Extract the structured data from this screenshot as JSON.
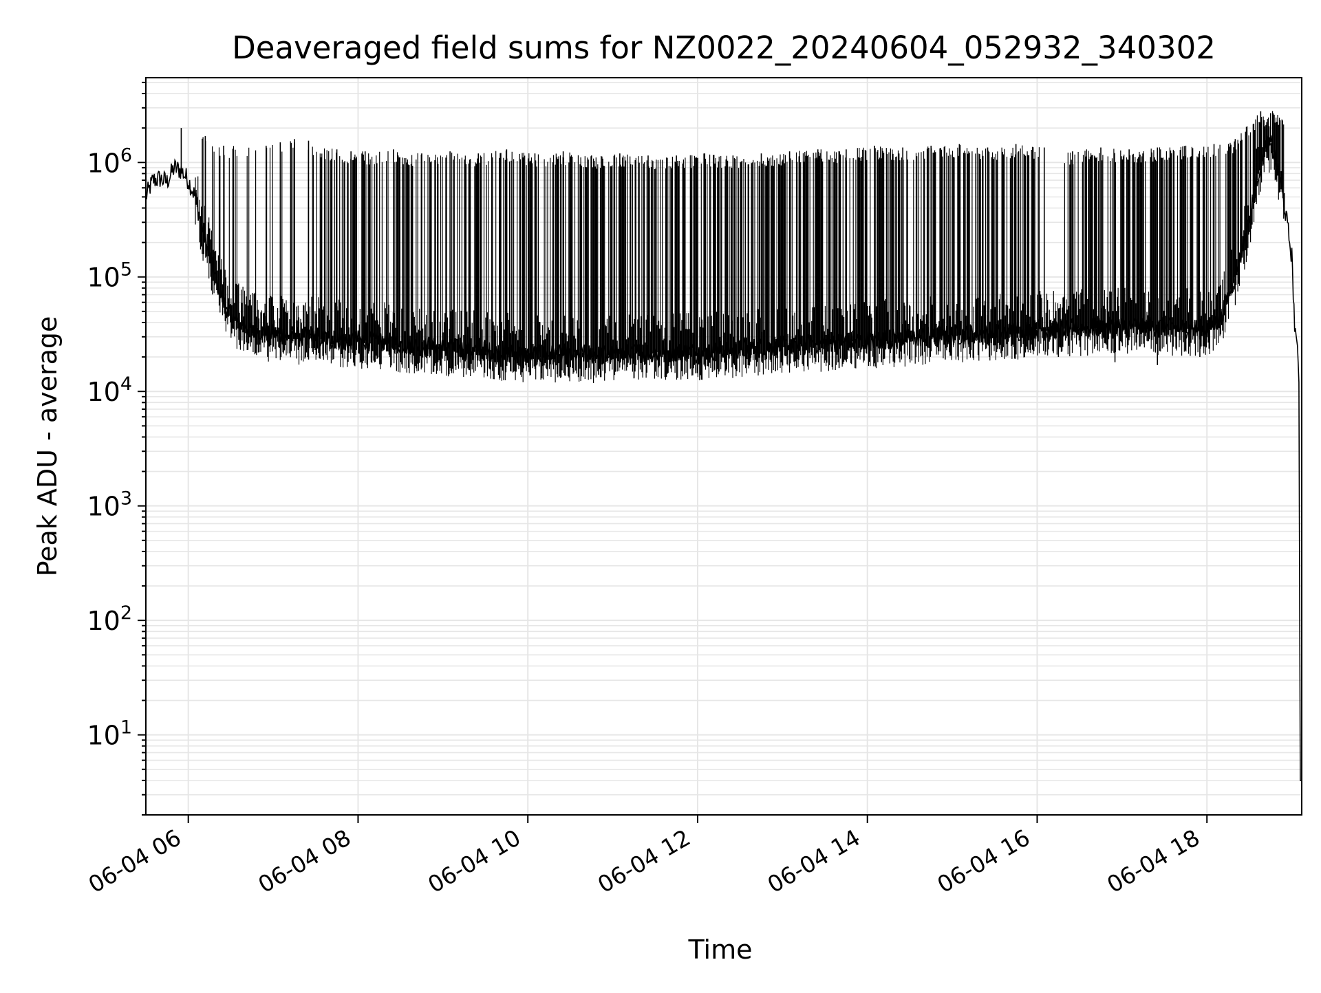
{
  "chart_data": {
    "type": "line",
    "title": "Deaveraged field sums for NZ0022_20240604_052932_340302",
    "xlabel": "Time",
    "ylabel": "Peak ADU - average",
    "yscale": "log",
    "ylim": [
      2,
      5500000
    ],
    "xlim": [
      "2024-06-04 05:30",
      "2024-06-04 19:07"
    ],
    "grid": true,
    "line_color": "#000000",
    "grid_color": "#e6e6e6",
    "x_tick_labels": [
      "06-04 06",
      "06-04 08",
      "06-04 10",
      "06-04 12",
      "06-04 14",
      "06-04 16",
      "06-04 18"
    ],
    "x_tick_values": [
      "2024-06-04 06:00",
      "2024-06-04 08:00",
      "2024-06-04 10:00",
      "2024-06-04 12:00",
      "2024-06-04 14:00",
      "2024-06-04 16:00",
      "2024-06-04 18:00"
    ],
    "y_ticks": [
      {
        "value": 10,
        "base": "10",
        "exp": "1"
      },
      {
        "value": 100,
        "base": "10",
        "exp": "2"
      },
      {
        "value": 1000,
        "base": "10",
        "exp": "3"
      },
      {
        "value": 10000,
        "base": "10",
        "exp": "4"
      },
      {
        "value": 100000,
        "base": "10",
        "exp": "5"
      },
      {
        "value": 1000000,
        "base": "10",
        "exp": "6"
      }
    ],
    "series": [
      {
        "x": [
          "05:30",
          "05:35",
          "05:40",
          "05:45",
          "05:50",
          "05:55",
          "06:00",
          "06:05",
          "06:10",
          "06:15",
          "06:20",
          "06:25",
          "06:30",
          "06:35",
          "06:40",
          "06:45",
          "06:50",
          "06:55",
          "07:00",
          "07:10",
          "07:20",
          "07:30",
          "07:40",
          "07:50",
          "08:00",
          "08:20",
          "08:40",
          "09:00",
          "09:20",
          "09:40",
          "10:00",
          "10:20",
          "10:40",
          "11:00",
          "11:20",
          "11:40",
          "12:00",
          "12:20",
          "12:40",
          "13:00",
          "13:20",
          "13:40",
          "14:00",
          "14:20",
          "14:40",
          "15:00",
          "15:20",
          "15:40",
          "16:00",
          "16:20",
          "16:40",
          "17:00",
          "17:20",
          "17:40",
          "18:00",
          "18:10",
          "18:20",
          "18:30",
          "18:35",
          "18:40",
          "18:45",
          "18:50",
          "18:55",
          "19:00",
          "19:02",
          "19:04",
          "19:05",
          "19:06",
          "19:07"
        ],
        "y": [
          500000,
          700000,
          720000,
          680000,
          900000,
          850000,
          700000,
          500000,
          250000,
          150000,
          90000,
          60000,
          45000,
          40000,
          38000,
          35000,
          34000,
          32000,
          32000,
          31000,
          30000,
          30000,
          29000,
          28000,
          28000,
          27000,
          25000,
          24000,
          23000,
          22000,
          21000,
          21000,
          21000,
          21000,
          22000,
          22000,
          22000,
          23000,
          24000,
          25000,
          26000,
          27000,
          28000,
          29000,
          30000,
          31000,
          32000,
          33000,
          35000,
          36000,
          36000,
          37000,
          37000,
          36000,
          35000,
          45000,
          100000,
          300000,
          700000,
          1200000,
          1500000,
          900000,
          400000,
          150000,
          38000,
          25000,
          12000,
          4,
          4
        ],
        "peak_x": [
          "05:55",
          "06:12",
          "06:25",
          "06:55",
          "07:05",
          "07:15",
          "07:25",
          "07:45",
          "07:55",
          "08:05",
          "08:25",
          "08:45",
          "09:05",
          "09:25",
          "09:45",
          "10:05",
          "10:25",
          "10:45",
          "11:05",
          "11:25",
          "11:45",
          "12:05",
          "12:25",
          "12:45",
          "13:05",
          "13:25",
          "13:45",
          "14:05",
          "14:25",
          "14:45",
          "15:05",
          "15:25",
          "15:45",
          "16:05",
          "16:25",
          "16:45",
          "17:05",
          "17:25",
          "17:45",
          "18:05",
          "18:20",
          "18:38",
          "18:45"
        ],
        "peak_y": [
          2000000,
          1700000,
          1400000,
          1400000,
          1500000,
          1600000,
          1550000,
          1300000,
          1250000,
          1250000,
          1300000,
          1200000,
          1250000,
          1200000,
          1300000,
          1200000,
          1250000,
          1150000,
          1200000,
          1150000,
          1150000,
          1200000,
          1150000,
          1200000,
          1250000,
          1300000,
          1300000,
          1400000,
          1350000,
          1400000,
          1450000,
          1350000,
          1450000,
          1350000,
          1250000,
          1350000,
          1300000,
          1350000,
          1400000,
          1450000,
          1600000,
          2800000,
          2700000
        ],
        "dip_x": [
          "06:50",
          "07:25",
          "08:15",
          "09:05",
          "09:55",
          "10:10",
          "10:50",
          "11:15",
          "11:55",
          "12:15",
          "12:55",
          "13:40",
          "14:10",
          "14:55",
          "15:35",
          "16:15",
          "16:55",
          "17:25",
          "17:55"
        ],
        "dip_y": [
          22000,
          19000,
          20000,
          16000,
          14000,
          13000,
          14000,
          13000,
          16000,
          15000,
          15000,
          16000,
          18000,
          19000,
          20000,
          20000,
          18000,
          17000,
          20000
        ]
      }
    ]
  }
}
